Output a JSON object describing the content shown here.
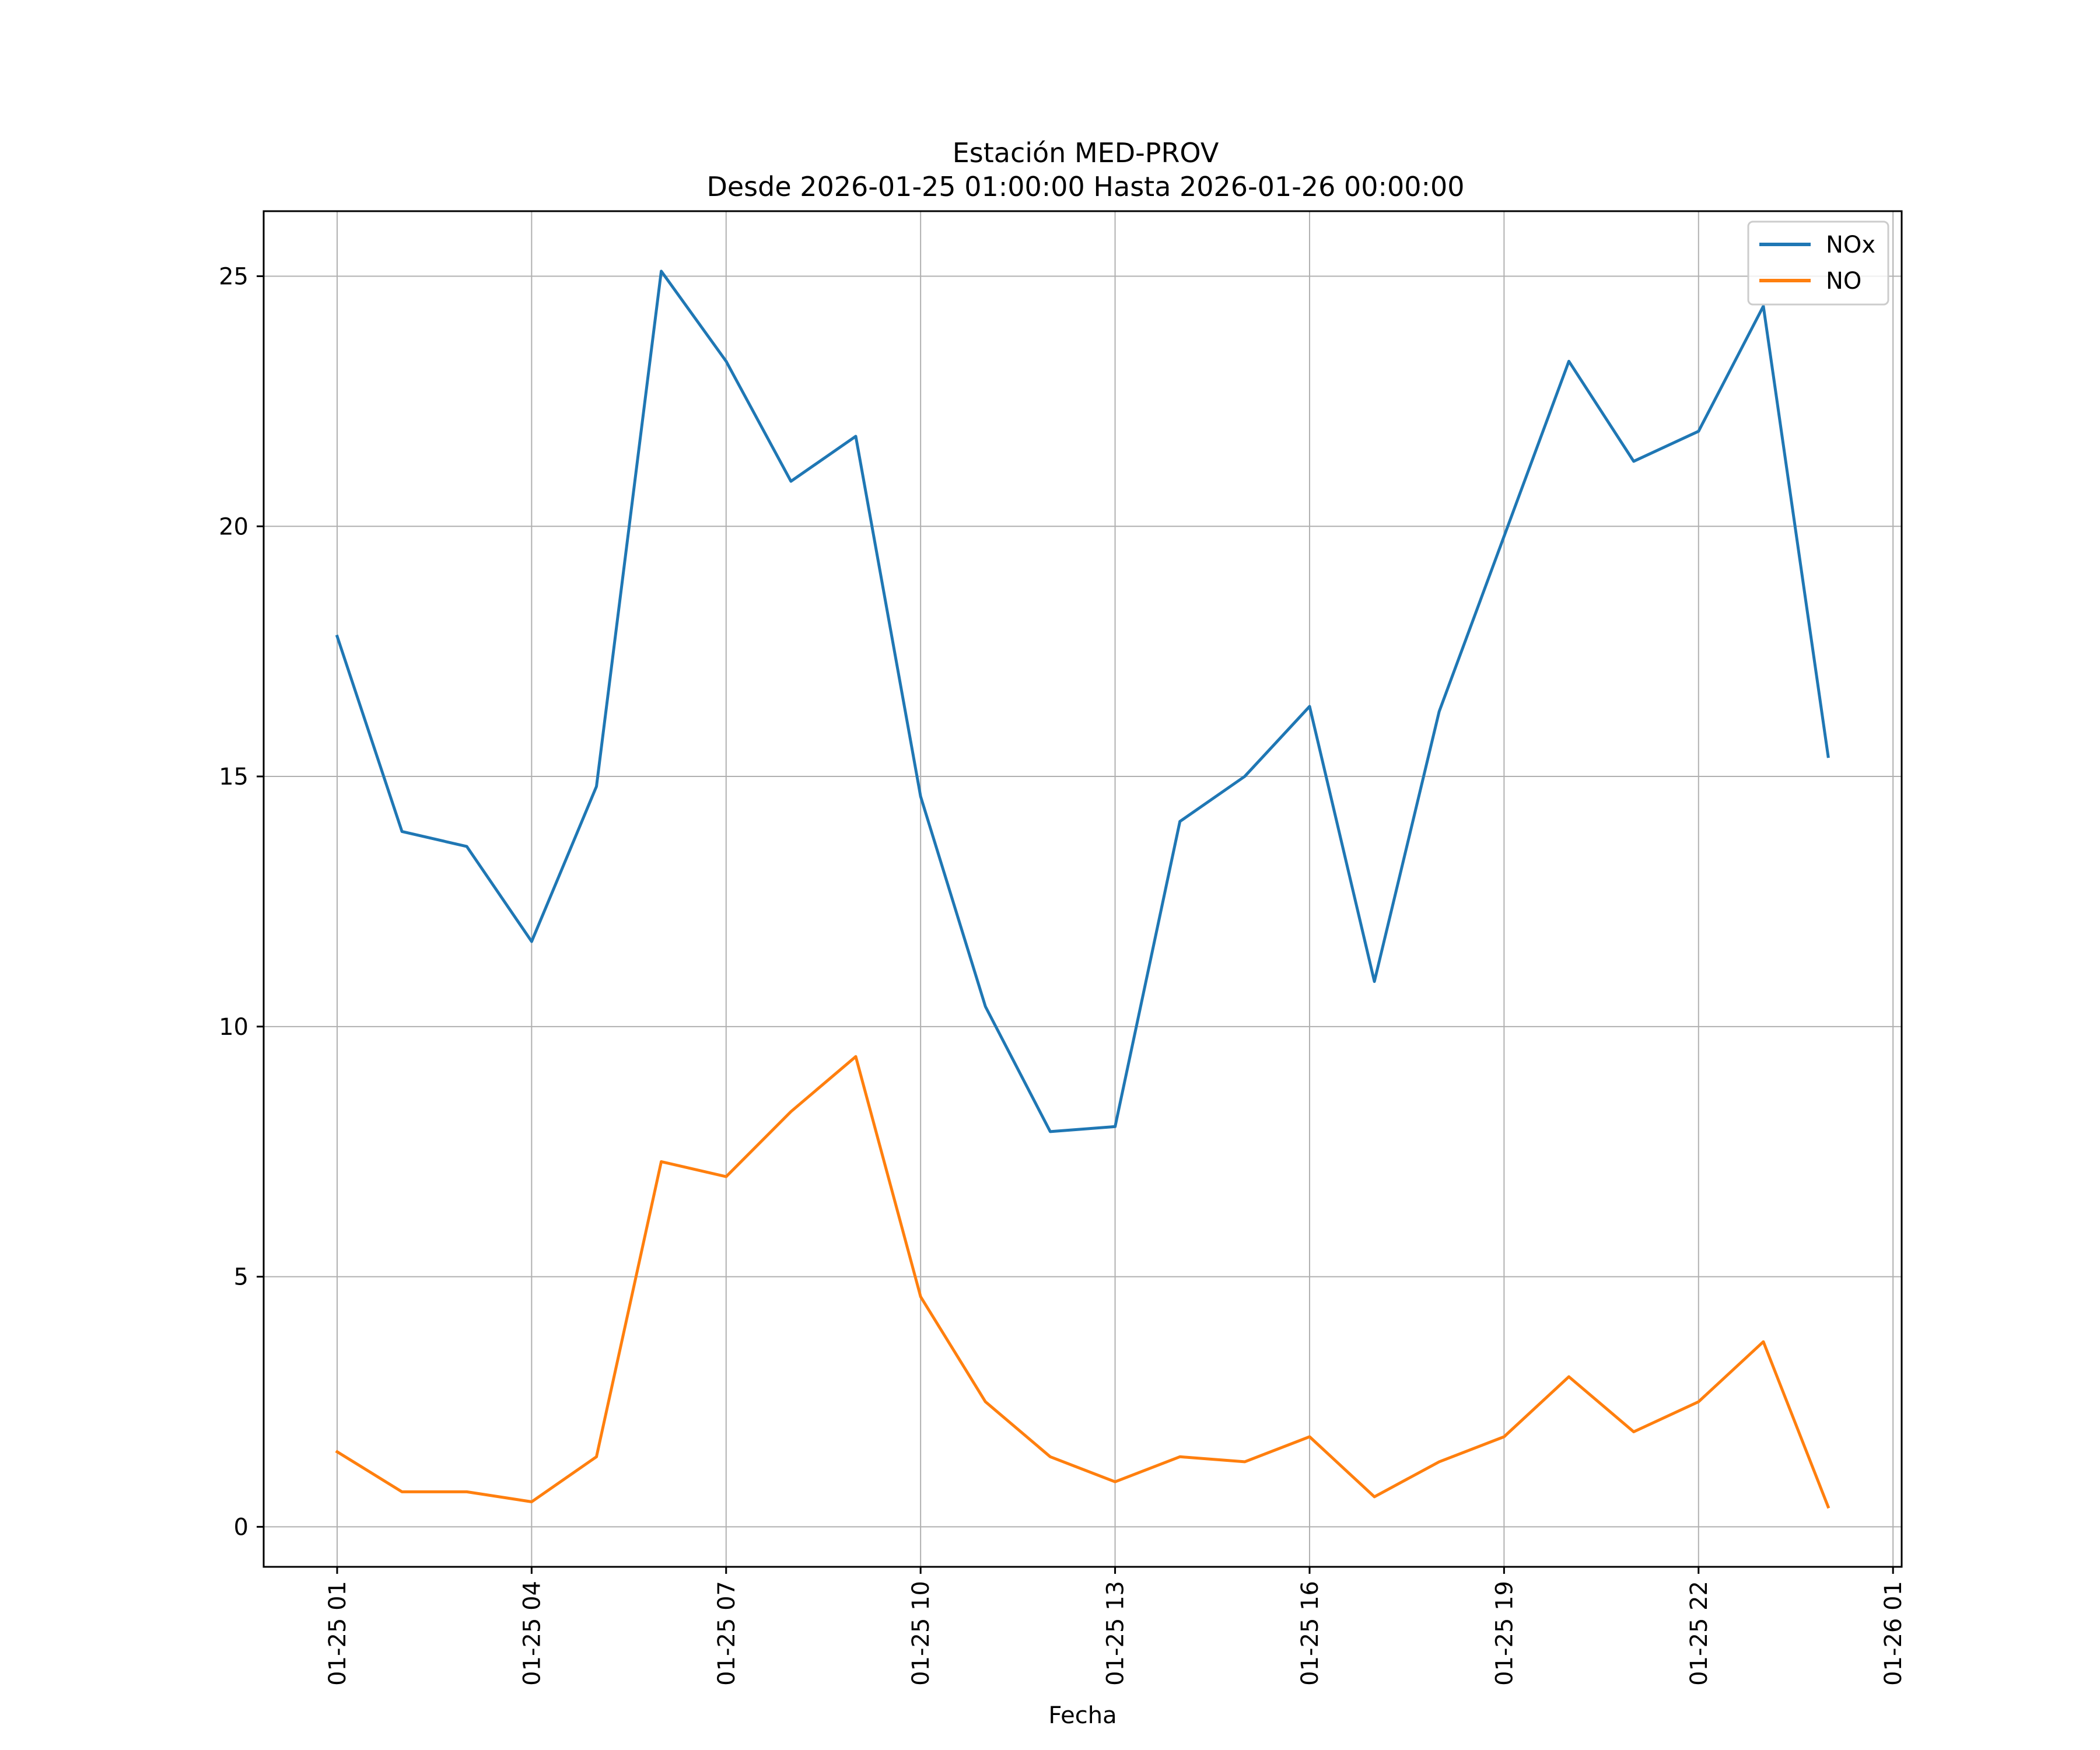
{
  "chart_data": {
    "type": "line",
    "title": "Estación MED-PROV",
    "subtitle": "Desde 2026-01-25 01:00:00 Hasta 2026-01-26 00:00:00",
    "xlabel": "Fecha",
    "ylabel": "",
    "x_axis_type": "datetime",
    "xlim": [
      "2026-01-24 23:52",
      "2026-01-26 01:08"
    ],
    "ylim": [
      -0.8,
      26.3
    ],
    "x_ticks": [
      "2026-01-25 01:00",
      "2026-01-25 04:00",
      "2026-01-25 07:00",
      "2026-01-25 10:00",
      "2026-01-25 13:00",
      "2026-01-25 16:00",
      "2026-01-25 19:00",
      "2026-01-25 22:00",
      "2026-01-26 01:00"
    ],
    "x_tick_labels": [
      "01-25 01",
      "01-25 04",
      "01-25 07",
      "01-25 10",
      "01-25 13",
      "01-25 16",
      "01-25 19",
      "01-25 22",
      "01-26 01"
    ],
    "y_ticks": [
      0,
      5,
      10,
      15,
      20,
      25
    ],
    "y_tick_labels": [
      "0",
      "5",
      "10",
      "15",
      "20",
      "25"
    ],
    "grid": true,
    "legend_position": "top-right",
    "x": [
      "2026-01-25 01:00",
      "2026-01-25 02:00",
      "2026-01-25 03:00",
      "2026-01-25 04:00",
      "2026-01-25 05:00",
      "2026-01-25 06:00",
      "2026-01-25 07:00",
      "2026-01-25 08:00",
      "2026-01-25 09:00",
      "2026-01-25 10:00",
      "2026-01-25 11:00",
      "2026-01-25 12:00",
      "2026-01-25 13:00",
      "2026-01-25 14:00",
      "2026-01-25 15:00",
      "2026-01-25 16:00",
      "2026-01-25 17:00",
      "2026-01-25 18:00",
      "2026-01-25 19:00",
      "2026-01-25 20:00",
      "2026-01-25 21:00",
      "2026-01-25 22:00",
      "2026-01-25 23:00",
      "2026-01-26 00:00"
    ],
    "series": [
      {
        "name": "NOx",
        "color": "#1f77b4",
        "values": [
          17.8,
          13.9,
          13.6,
          11.7,
          14.8,
          25.1,
          23.3,
          20.9,
          21.8,
          14.6,
          10.4,
          7.9,
          8.0,
          14.1,
          15.0,
          16.4,
          10.9,
          16.3,
          19.8,
          23.3,
          21.3,
          21.9,
          24.4,
          15.4
        ]
      },
      {
        "name": "NO",
        "color": "#ff7f0e",
        "values": [
          1.5,
          0.7,
          0.7,
          0.5,
          1.4,
          7.3,
          7.0,
          8.3,
          9.4,
          4.6,
          2.5,
          1.4,
          0.9,
          1.4,
          1.3,
          1.8,
          0.6,
          1.3,
          1.8,
          3.0,
          1.9,
          2.5,
          3.7,
          0.4
        ]
      }
    ]
  }
}
